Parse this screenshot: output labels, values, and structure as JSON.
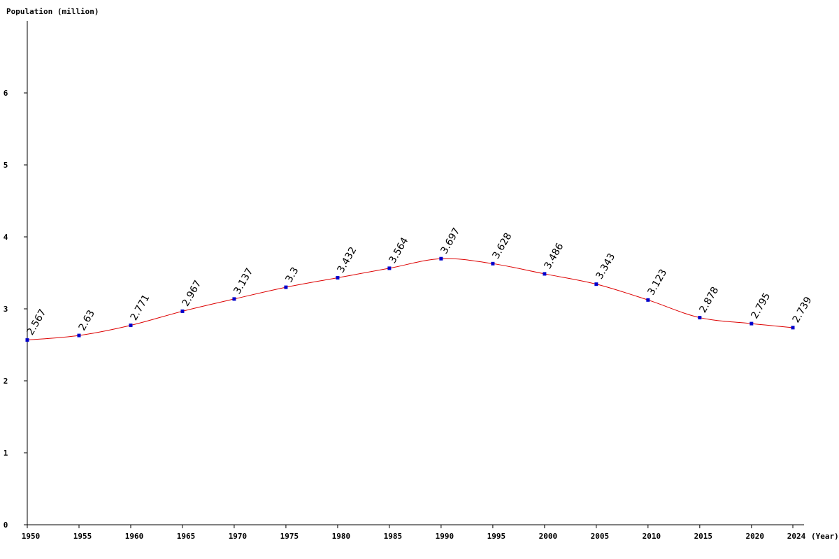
{
  "chart_data": {
    "type": "line",
    "ylabel": "Population (million)",
    "xlabel": "(Year)",
    "x": [
      1950,
      1955,
      1960,
      1965,
      1970,
      1975,
      1980,
      1985,
      1990,
      1995,
      2000,
      2005,
      2010,
      2015,
      2020,
      2024
    ],
    "values": [
      2.567,
      2.63,
      2.771,
      2.967,
      3.137,
      3.3,
      3.432,
      3.564,
      3.697,
      3.628,
      3.486,
      3.343,
      3.123,
      2.878,
      2.795,
      2.739
    ],
    "value_labels": [
      "2.567",
      "2.63",
      "2.771",
      "2.967",
      "3.137",
      "3.3",
      "3.432",
      "3.564",
      "3.697",
      "3.628",
      "3.486",
      "3.343",
      "3.123",
      "2.878",
      "2.795",
      "2.739"
    ],
    "yticks": [
      0,
      1,
      2,
      3,
      4,
      5,
      6
    ],
    "ylim": [
      0,
      7
    ],
    "xlim": [
      1950,
      2024
    ],
    "grid": false,
    "line_color": "#dd0000",
    "marker_color": "#0000cc"
  }
}
